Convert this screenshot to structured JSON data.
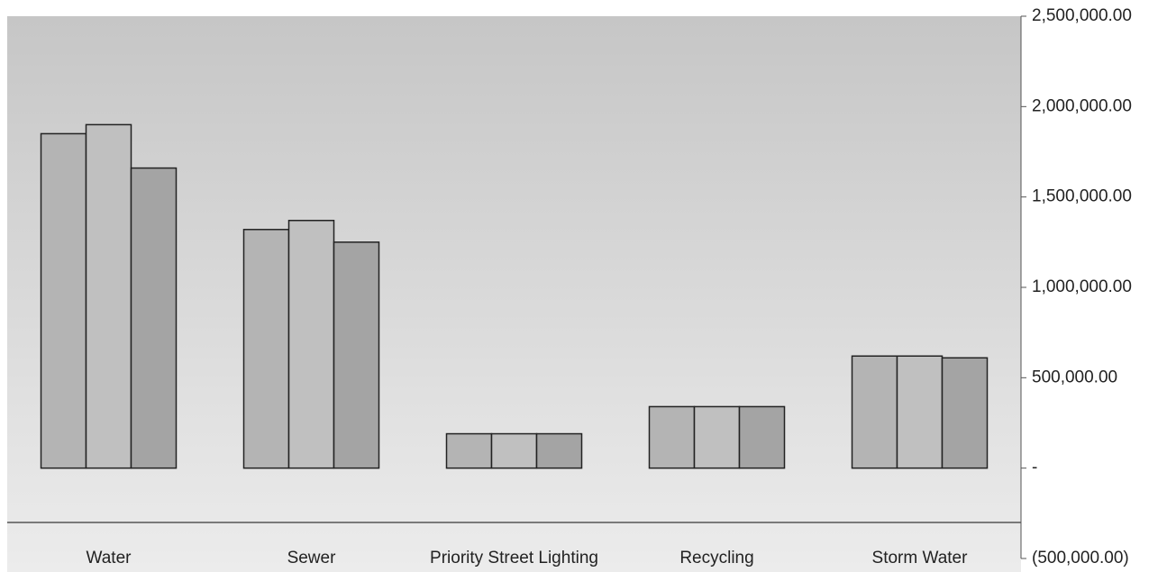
{
  "chart_data": {
    "type": "bar",
    "categories": [
      "Water",
      "Sewer",
      "Priority Street Lighting",
      "Recycling",
      "Storm Water"
    ],
    "series": [
      {
        "color": "#b4b4b4",
        "values": [
          1850000,
          1320000,
          190000,
          340000,
          620000
        ]
      },
      {
        "color": "#c0c0c0",
        "values": [
          1900000,
          1370000,
          190000,
          340000,
          620000
        ]
      },
      {
        "color": "#a4a4a4",
        "values": [
          1660000,
          1250000,
          190000,
          340000,
          610000
        ]
      }
    ],
    "ylim": [
      -500000,
      2500000
    ],
    "yticks": [
      {
        "value": -500000,
        "label": "(500,000.00)"
      },
      {
        "value": 0,
        "label": "-"
      },
      {
        "value": 500000,
        "label": "500,000.00"
      },
      {
        "value": 1000000,
        "label": "1,000,000.00"
      },
      {
        "value": 1500000,
        "label": "1,500,000.00"
      },
      {
        "value": 2000000,
        "label": "2,000,000.00"
      },
      {
        "value": 2500000,
        "label": "2,500,000.00"
      }
    ],
    "grid": false
  }
}
